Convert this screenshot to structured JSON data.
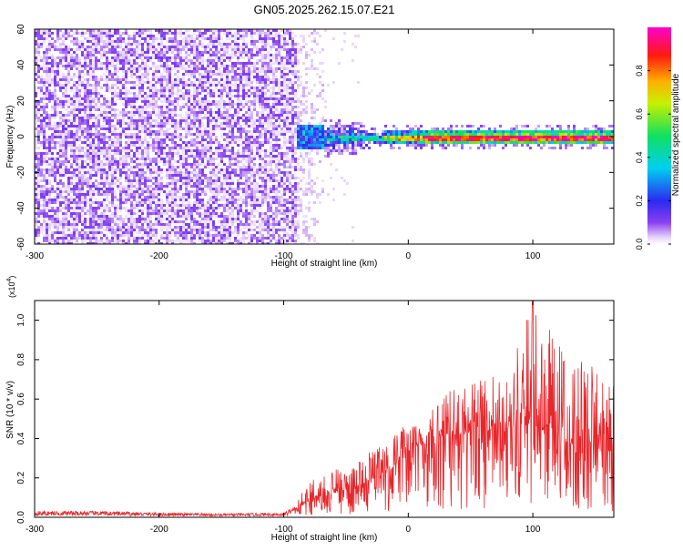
{
  "title": "GN05.2025.262.15.07.E21",
  "colors": {
    "line": "#e8262b",
    "axis": "#000000",
    "background": "#ffffff"
  },
  "chart_data": [
    {
      "type": "heatmap",
      "title": "GN05.2025.262.15.07.E21",
      "xlabel": "Height of straight line (km)",
      "ylabel": "Frequency (Hz)",
      "xlim": [
        -300,
        165
      ],
      "ylim": [
        -60,
        60
      ],
      "xticks": [
        -300,
        -200,
        -100,
        0,
        100
      ],
      "yticks": [
        60,
        40,
        20,
        0,
        -20,
        -40,
        -60
      ],
      "colorbar": {
        "label": "Normalized spectral amplitude",
        "range": [
          0.0,
          1.0
        ],
        "ticks": [
          0.0,
          0.2,
          0.4,
          0.6,
          0.8
        ],
        "colormap": "rainbow (purple-blue-cyan-green-yellow-red-magenta)"
      },
      "regions": [
        {
          "x_range": [
            -300,
            -75
          ],
          "freq_range": [
            -60,
            60
          ],
          "amplitude_approx": 0.05,
          "description": "broadband low-amplitude noise"
        },
        {
          "x_range": [
            -90,
            -20
          ],
          "freq_range": [
            -8,
            8
          ],
          "amplitude_approx": 0.25,
          "description": "narrowing band"
        },
        {
          "x_range": [
            -20,
            165
          ],
          "freq_range": [
            -3,
            3
          ],
          "amplitude_approx": 0.9,
          "description": "strong narrow line near 0 Hz"
        }
      ]
    },
    {
      "type": "line",
      "xlabel": "Height of straight line (km)",
      "ylabel": "SNR (10 * v/v)",
      "yscale_label": "(x10",
      "yscale_exp": "4",
      "xlim": [
        -300,
        165
      ],
      "ylim": [
        0.0,
        1.1
      ],
      "xticks": [
        -300,
        -200,
        -100,
        0,
        100
      ],
      "yticks": [
        0.0,
        0.2,
        0.4,
        0.6,
        0.8,
        1.0
      ],
      "ytick_labels": [
        "0.0",
        "0.2",
        "0.4",
        "0.6",
        "0.8",
        "1.0"
      ],
      "series": [
        {
          "name": "SNR",
          "x": [
            -300,
            -250,
            -200,
            -150,
            -100,
            -90,
            -80,
            -60,
            -40,
            -20,
            0,
            20,
            40,
            60,
            80,
            100,
            120,
            140,
            165
          ],
          "envelope_mean": [
            0.02,
            0.02,
            0.015,
            0.012,
            0.015,
            0.04,
            0.08,
            0.12,
            0.16,
            0.22,
            0.32,
            0.4,
            0.42,
            0.44,
            0.45,
            0.44,
            0.4,
            0.35,
            0.32
          ],
          "envelope_max": [
            0.04,
            0.04,
            0.03,
            0.025,
            0.03,
            0.08,
            0.18,
            0.24,
            0.28,
            0.4,
            0.48,
            0.62,
            0.66,
            0.7,
            0.74,
            1.1,
            0.9,
            0.8,
            0.7
          ]
        }
      ]
    }
  ]
}
